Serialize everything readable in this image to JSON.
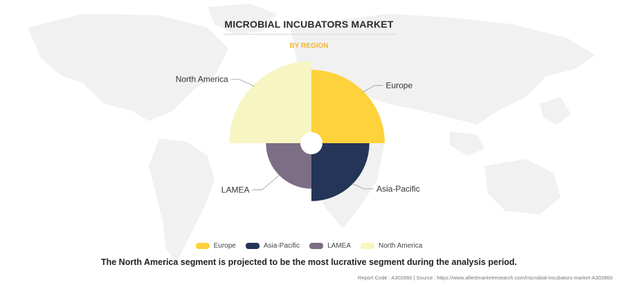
{
  "title": "MICROBIAL INCUBATORS MARKET",
  "subtitle": "BY REGION",
  "summary": "The North America segment is projected to be the most lucrative segment during the analysis period.",
  "footer": "Report Code : A302860  |  Source : https://www.alliedmarketresearch.com/microbial-incubators-market-A302860",
  "colors": {
    "Europe": "#fdd23a",
    "Asia-Pacific": "#243557",
    "LAMEA": "#7c6e84",
    "North America": "#f7f5c2"
  },
  "chart_data": {
    "type": "pie",
    "variant": "polar-area",
    "categories": [
      "Europe",
      "Asia-Pacific",
      "LAMEA",
      "North America"
    ],
    "values": [
      1.0,
      0.79,
      0.62,
      1.12
    ],
    "value_scale": "relative",
    "legend_position": "bottom"
  }
}
